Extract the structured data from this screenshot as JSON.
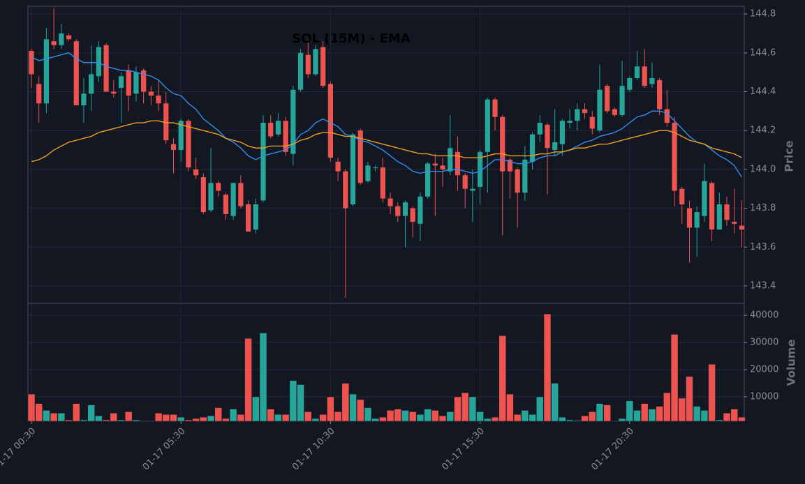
{
  "chart_data": {
    "type": "candlestick",
    "title": "SOL (15M) - EMA",
    "ylabel": "Price",
    "up_color": "#26a69a",
    "down_color": "#ef5350",
    "grid": true,
    "categories": [
      "01-17 00:30",
      null,
      null,
      null,
      null,
      null,
      null,
      null,
      null,
      null,
      null,
      null,
      null,
      null,
      null,
      null,
      null,
      null,
      null,
      null,
      "01-17 05:30",
      null,
      null,
      null,
      null,
      null,
      null,
      null,
      null,
      null,
      null,
      null,
      null,
      null,
      null,
      null,
      null,
      null,
      null,
      null,
      "01-17 10:30",
      null,
      null,
      null,
      null,
      null,
      null,
      null,
      null,
      null,
      null,
      null,
      null,
      null,
      null,
      null,
      null,
      null,
      null,
      null,
      "01-17 15:30",
      null,
      null,
      null,
      null,
      null,
      null,
      null,
      null,
      null,
      null,
      null,
      null,
      null,
      null,
      null,
      null,
      null,
      null,
      null,
      "01-17 20:30",
      null,
      null,
      null,
      null,
      null,
      null,
      null,
      null,
      null,
      null,
      null,
      null,
      null,
      null,
      null
    ],
    "open": [
      144.61,
      144.44,
      144.34,
      144.66,
      144.64,
      144.69,
      144.66,
      144.33,
      144.39,
      144.48,
      144.64,
      144.4,
      144.42,
      144.51,
      144.39,
      144.51,
      144.4,
      144.38,
      144.34,
      144.13,
      144.1,
      144.25,
      144.0,
      143.96,
      143.79,
      143.93,
      143.87,
      143.76,
      143.93,
      143.82,
      143.69,
      143.84,
      144.24,
      144.18,
      144.25,
      144.08,
      144.41,
      144.59,
      144.49,
      144.63,
      144.44,
      144.04,
      143.99,
      143.82,
      144.2,
      143.94,
      144.01,
      144.01,
      143.85,
      143.81,
      143.76,
      143.8,
      143.72,
      143.86,
      144.03,
      144.02,
      143.99,
      144.09,
      143.97,
      143.89,
      143.91,
      144.09,
      144.36,
      144.27,
      144.05,
      144.0,
      143.88,
      144.04,
      144.18,
      144.23,
      144.1,
      144.13,
      144.24,
      144.25,
      144.31,
      144.27,
      144.2,
      144.43,
      144.31,
      144.28,
      144.41,
      144.47,
      144.53,
      144.44,
      144.46,
      144.31,
      144.24,
      143.9,
      143.8,
      143.7,
      143.76,
      143.93,
      143.69,
      143.82,
      143.73,
      143.71
    ],
    "high": [
      144.62,
      144.48,
      144.73,
      144.83,
      144.75,
      144.7,
      144.67,
      144.47,
      144.64,
      144.66,
      144.65,
      144.46,
      144.5,
      144.54,
      144.53,
      144.52,
      144.43,
      144.46,
      144.4,
      144.16,
      144.26,
      144.26,
      144.06,
      143.98,
      144.11,
      143.94,
      143.88,
      143.93,
      143.97,
      143.84,
      143.85,
      144.28,
      144.28,
      144.29,
      144.27,
      144.43,
      144.62,
      144.67,
      144.64,
      144.66,
      144.45,
      144.06,
      144.0,
      144.19,
      144.21,
      144.04,
      144.02,
      144.06,
      143.88,
      143.83,
      143.84,
      143.81,
      143.88,
      144.04,
      144.08,
      144.06,
      144.28,
      144.17,
      143.98,
      144.0,
      144.1,
      144.37,
      144.37,
      144.28,
      144.06,
      144.01,
      144.12,
      144.19,
      144.28,
      144.24,
      144.31,
      144.26,
      144.31,
      144.34,
      144.34,
      144.3,
      144.54,
      144.44,
      144.32,
      144.56,
      144.48,
      144.61,
      144.62,
      144.55,
      144.47,
      144.41,
      144.27,
      143.91,
      143.84,
      143.81,
      144.03,
      143.94,
      143.88,
      143.86,
      143.9,
      143.84
    ],
    "low": [
      144.42,
      144.24,
      144.29,
      144.62,
      144.62,
      144.66,
      144.33,
      144.24,
      144.3,
      144.45,
      144.4,
      144.37,
      144.24,
      144.3,
      144.35,
      144.34,
      144.33,
      144.3,
      144.13,
      143.98,
      144.04,
      143.99,
      143.95,
      143.77,
      143.78,
      143.86,
      143.74,
      143.74,
      143.8,
      143.68,
      143.67,
      143.83,
      144.16,
      144.17,
      144.07,
      144.02,
      144.4,
      144.47,
      144.48,
      144.42,
      144.04,
      143.94,
      143.34,
      143.81,
      143.92,
      143.93,
      143.99,
      143.83,
      143.77,
      143.73,
      143.6,
      143.65,
      143.63,
      143.85,
      143.76,
      143.91,
      143.97,
      143.89,
      143.8,
      143.73,
      143.82,
      143.88,
      144.2,
      143.66,
      143.85,
      143.7,
      143.84,
      144.0,
      144.14,
      143.87,
      144.07,
      144.07,
      144.21,
      144.2,
      144.26,
      144.18,
      144.19,
      144.29,
      144.27,
      144.27,
      144.4,
      144.46,
      144.42,
      144.42,
      144.28,
      144.22,
      143.81,
      143.72,
      143.52,
      143.55,
      143.73,
      143.63,
      143.69,
      143.71,
      143.67,
      143.6
    ],
    "close": [
      144.49,
      144.34,
      144.67,
      144.64,
      144.7,
      144.67,
      144.33,
      144.39,
      144.49,
      144.63,
      144.4,
      144.39,
      144.48,
      144.38,
      144.5,
      144.4,
      144.38,
      144.34,
      144.15,
      144.1,
      144.25,
      144.01,
      143.97,
      143.78,
      143.93,
      143.89,
      143.77,
      143.93,
      143.81,
      143.68,
      143.82,
      144.24,
      144.17,
      144.25,
      144.09,
      144.41,
      144.6,
      144.49,
      144.62,
      144.43,
      144.06,
      143.99,
      143.8,
      144.18,
      143.93,
      144.02,
      144.01,
      143.85,
      143.81,
      143.76,
      143.83,
      143.73,
      143.86,
      144.03,
      144.02,
      144.0,
      144.11,
      143.97,
      143.9,
      143.9,
      144.09,
      144.36,
      144.27,
      143.99,
      143.99,
      143.88,
      144.05,
      144.18,
      144.24,
      144.11,
      144.14,
      144.25,
      144.25,
      144.31,
      144.29,
      144.21,
      144.41,
      144.3,
      144.28,
      144.43,
      144.47,
      144.53,
      144.43,
      144.47,
      144.31,
      144.24,
      143.89,
      143.82,
      143.7,
      143.78,
      143.94,
      143.69,
      143.82,
      143.74,
      143.72,
      143.69
    ],
    "series": [
      {
        "color": "#2f8ff0",
        "values": [
          144.58,
          144.56,
          144.57,
          144.58,
          144.59,
          144.6,
          144.57,
          144.55,
          144.55,
          144.55,
          144.53,
          144.52,
          144.51,
          144.51,
          144.5,
          144.49,
          144.48,
          144.46,
          144.42,
          144.39,
          144.38,
          144.34,
          144.31,
          144.26,
          144.23,
          144.2,
          144.16,
          144.14,
          144.11,
          144.07,
          144.05,
          144.07,
          144.08,
          144.09,
          144.1,
          144.13,
          144.18,
          144.2,
          144.24,
          144.26,
          144.24,
          144.22,
          144.18,
          144.17,
          144.15,
          144.14,
          144.12,
          144.1,
          144.07,
          144.04,
          144.02,
          143.99,
          143.98,
          143.99,
          143.99,
          143.99,
          144.0,
          144.0,
          143.99,
          143.98,
          143.99,
          144.02,
          144.05,
          144.05,
          144.04,
          144.03,
          144.03,
          144.04,
          144.06,
          144.07,
          144.07,
          144.09,
          144.1,
          144.12,
          144.14,
          144.15,
          144.17,
          144.18,
          144.19,
          144.21,
          144.24,
          144.27,
          144.28,
          144.3,
          144.3,
          144.29,
          144.25,
          144.21,
          144.17,
          144.14,
          144.13,
          144.1,
          144.07,
          144.05,
          144.02,
          143.96
        ]
      },
      {
        "color": "#f0a020",
        "values": [
          144.04,
          144.05,
          144.07,
          144.1,
          144.12,
          144.14,
          144.15,
          144.16,
          144.17,
          144.19,
          144.2,
          144.21,
          144.22,
          144.23,
          144.24,
          144.24,
          144.25,
          144.25,
          144.24,
          144.24,
          144.23,
          144.22,
          144.21,
          144.2,
          144.19,
          144.18,
          144.16,
          144.15,
          144.14,
          144.12,
          144.11,
          144.11,
          144.12,
          144.12,
          144.12,
          144.13,
          144.15,
          144.16,
          144.18,
          144.19,
          144.19,
          144.18,
          144.17,
          144.17,
          144.16,
          144.15,
          144.14,
          144.13,
          144.12,
          144.11,
          144.1,
          144.09,
          144.08,
          144.08,
          144.07,
          144.07,
          144.07,
          144.07,
          144.06,
          144.06,
          144.06,
          144.07,
          144.08,
          144.08,
          144.07,
          144.07,
          144.07,
          144.07,
          144.08,
          144.08,
          144.09,
          144.09,
          144.1,
          144.11,
          144.11,
          144.12,
          144.13,
          144.13,
          144.14,
          144.15,
          144.16,
          144.17,
          144.18,
          144.19,
          144.2,
          144.2,
          144.19,
          144.17,
          144.15,
          144.14,
          144.13,
          144.11,
          144.1,
          144.09,
          144.08,
          144.06
        ]
      }
    ],
    "ylim": [
      143.31,
      144.84
    ],
    "yticks": [
      143.4,
      143.6,
      143.8,
      {
        "value": 144,
        "label": "144.0"
      },
      144.2,
      144.4,
      144.6,
      144.8
    ],
    "volume": {
      "ylabel": "Volume",
      "ylim": [
        1000,
        44400
      ],
      "yticks": [
        10000,
        20000,
        30000,
        40000
      ],
      "values": [
        11000,
        7500,
        5000,
        4000,
        4000,
        1500,
        7500,
        1500,
        7000,
        3000,
        1500,
        4000,
        1500,
        4500,
        1500,
        1200,
        1200,
        4000,
        3500,
        3500,
        2500,
        1500,
        2000,
        2500,
        3000,
        6000,
        2000,
        5500,
        3500,
        31500,
        10000,
        33500,
        5500,
        3500,
        3500,
        16000,
        14500,
        4500,
        2000,
        3500,
        10000,
        4500,
        15000,
        11000,
        9000,
        6000,
        2000,
        2500,
        5000,
        5500,
        5000,
        4500,
        3500,
        5500,
        5000,
        3000,
        4500,
        10000,
        11500,
        10000,
        4500,
        2000,
        2500,
        32500,
        11000,
        3500,
        5000,
        3500,
        10000,
        40500,
        15000,
        2500,
        1500,
        1300,
        3000,
        4500,
        7500,
        7000,
        1200,
        2000,
        8500,
        5000,
        7500,
        5500,
        6500,
        11500,
        33000,
        9500,
        17500,
        6500,
        5000,
        22000,
        1500,
        4000,
        5500,
        2500
      ]
    }
  }
}
